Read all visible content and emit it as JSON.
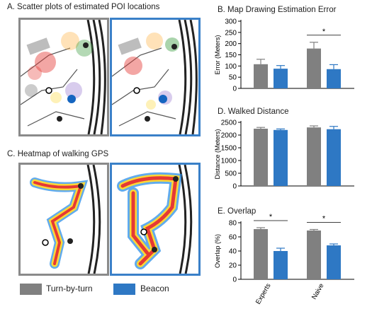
{
  "panel_titles": {
    "a": "A. Scatter plots of estimated POI locations",
    "b": "B. Map Drawing Estimation Error",
    "c": "C. Heatmap of walking GPS",
    "d": "D. Walked Distance",
    "e": "E. Overlap"
  },
  "legend": {
    "items": [
      {
        "label": "Turn-by-turn",
        "color": "#808080"
      },
      {
        "label": "Beacon",
        "color": "#2e78c4"
      }
    ]
  },
  "colors": {
    "turn_by_turn": "#808080",
    "beacon": "#2e78c4",
    "map_frame_turn_by_turn": "#8a8a8a",
    "map_frame_beacon": "#3a80c8"
  },
  "chart_data": [
    {
      "id": "b",
      "type": "bar",
      "title": "B. Map Drawing Estimation Error",
      "ylabel": "Error (Meters)",
      "categories": [
        "Experts",
        "Naive"
      ],
      "category_labels_shown": false,
      "series": [
        {
          "name": "Turn-by-turn",
          "values": [
            108,
            178
          ],
          "errors": [
            22,
            28
          ]
        },
        {
          "name": "Beacon",
          "values": [
            88,
            86
          ],
          "errors": [
            14,
            20
          ]
        }
      ],
      "ylim": [
        0,
        300
      ],
      "yticks": [
        0,
        50,
        100,
        150,
        200,
        250,
        300
      ],
      "significance": [
        {
          "group": 1,
          "label": "*"
        }
      ]
    },
    {
      "id": "d",
      "type": "bar",
      "title": "D. Walked Distance",
      "ylabel": "Distance (Meters)",
      "categories": [
        "Experts",
        "Naive"
      ],
      "category_labels_shown": false,
      "series": [
        {
          "name": "Turn-by-turn",
          "values": [
            2250,
            2300
          ],
          "errors": [
            50,
            60
          ]
        },
        {
          "name": "Beacon",
          "values": [
            2200,
            2230
          ],
          "errors": [
            40,
            110
          ]
        }
      ],
      "ylim": [
        0,
        2500
      ],
      "yticks": [
        0,
        500,
        1000,
        1500,
        2000,
        2500
      ],
      "significance": []
    },
    {
      "id": "e",
      "type": "bar",
      "title": "E. Overlap",
      "ylabel": "Overlap (%)",
      "categories": [
        "Experts",
        "Naive"
      ],
      "category_labels_shown": true,
      "series": [
        {
          "name": "Turn-by-turn",
          "values": [
            71,
            69
          ],
          "errors": [
            2,
            1.5
          ]
        },
        {
          "name": "Beacon",
          "values": [
            40,
            48
          ],
          "errors": [
            4,
            2
          ]
        }
      ],
      "ylim": [
        0,
        80
      ],
      "yticks": [
        0,
        20,
        40,
        60,
        80
      ],
      "significance": [
        {
          "group": 0,
          "label": "*"
        },
        {
          "group": 1,
          "label": "*"
        }
      ]
    }
  ]
}
